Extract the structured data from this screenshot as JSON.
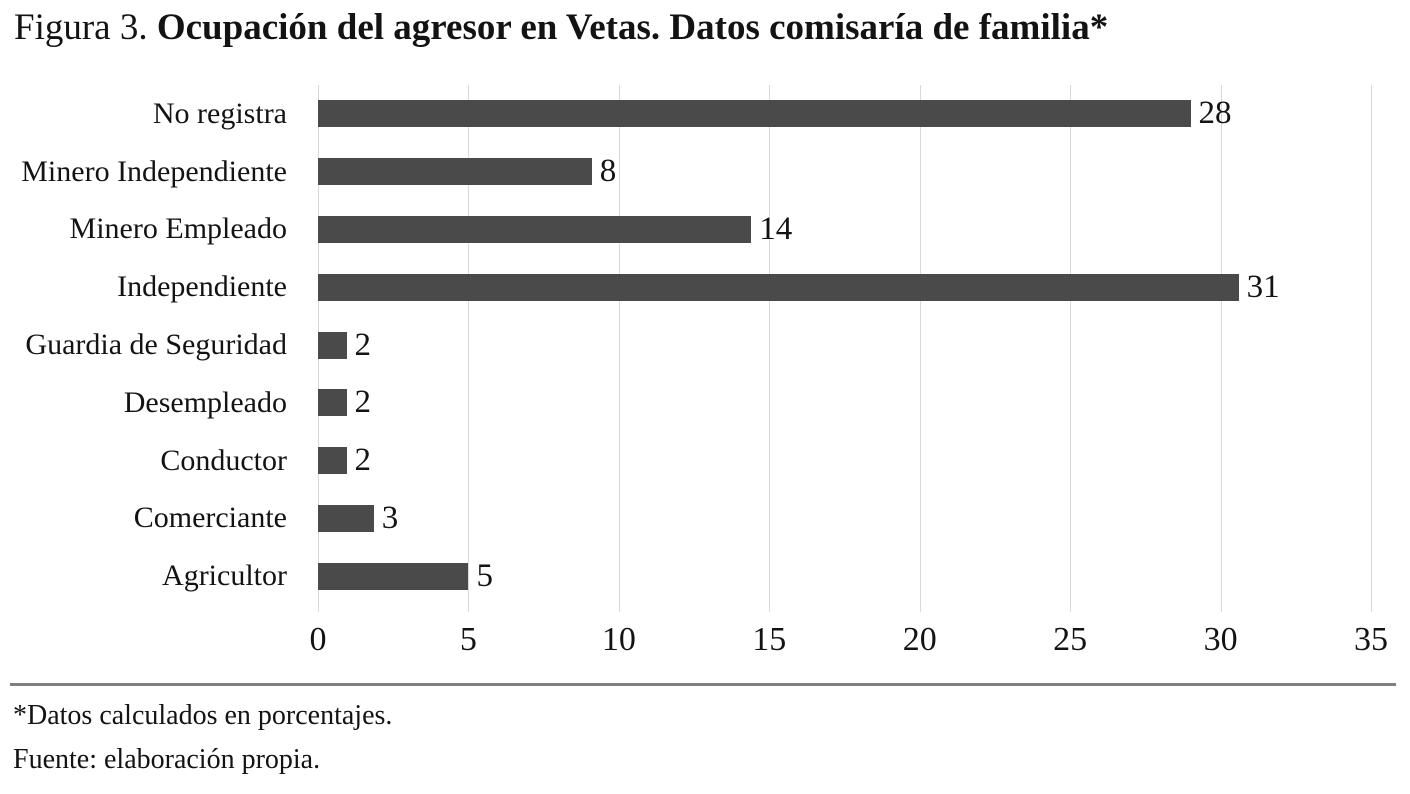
{
  "figure": {
    "title_prefix": "Figura 3. ",
    "title_bold": "Ocupación del agresor en Vetas. Datos comisaría de familia*"
  },
  "chart_data": {
    "type": "bar",
    "orientation": "horizontal",
    "title": "Figura 3. Ocupación del agresor en Vetas. Datos comisaría de familia*",
    "categories": [
      "No registra",
      "Minero Independiente",
      "Minero Empleado",
      "Independiente",
      "Guardia de Seguridad",
      "Desempleado",
      "Conductor",
      "Comerciante",
      "Agricultor"
    ],
    "values": [
      28,
      8,
      14,
      31,
      2,
      2,
      2,
      3,
      5
    ],
    "value_labels": [
      "28",
      "8",
      "14",
      "31",
      "2",
      "2",
      "2",
      "3",
      "5"
    ],
    "bar_display_units": [
      29.0,
      9.1,
      14.4,
      30.6,
      0.95,
      0.95,
      0.95,
      1.85,
      5.0
    ],
    "xlabel": "",
    "ylabel": "",
    "xlim": [
      0,
      35
    ],
    "xticks": [
      0,
      5,
      10,
      15,
      20,
      25,
      30,
      35
    ],
    "xtick_labels": [
      "0",
      "5",
      "10",
      "15",
      "20",
      "25",
      "30",
      "35"
    ],
    "grid": true,
    "legend_position": "none",
    "bar_color": "#4a4a4a",
    "gridline_color": "#d9d9d9",
    "text_color": "#131313"
  },
  "footer": {
    "rule_color": "#7f7f7f",
    "note1": "*Datos calculados en porcentajes.",
    "note2": "Fuente: elaboración propia."
  }
}
